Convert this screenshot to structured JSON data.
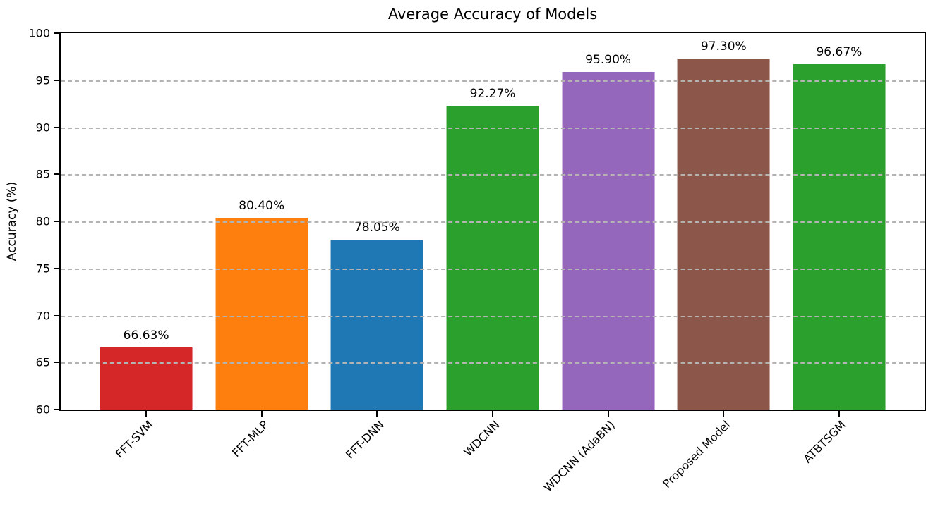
{
  "chart_data": {
    "type": "bar",
    "title": "Average Accuracy of Models",
    "xlabel": "",
    "ylabel": "Accuracy (%)",
    "categories": [
      "FFT-SVM",
      "FFT-MLP",
      "FFT-DNN",
      "WDCNN",
      "WDCNN (AdaBN)",
      "Proposed Model",
      "ATBTSGM"
    ],
    "values": [
      66.63,
      80.4,
      78.05,
      92.27,
      95.9,
      97.3,
      96.67
    ],
    "value_labels": [
      "66.63%",
      "80.40%",
      "78.05%",
      "92.27%",
      "95.90%",
      "97.30%",
      "96.67%"
    ],
    "bar_colors": [
      "#d62728",
      "#ff7f0e",
      "#1f77b4",
      "#2ca02c",
      "#9467bd",
      "#8c564b",
      "#2ca02c"
    ],
    "ylim": [
      60,
      100
    ],
    "yticks": [
      60,
      65,
      70,
      75,
      80,
      85,
      90,
      95,
      100
    ],
    "ytick_labels": [
      "60",
      "65",
      "70",
      "75",
      "80",
      "85",
      "90",
      "95",
      "100"
    ],
    "grid": {
      "axis": "y",
      "style": "dashed",
      "color": "#b3b3b3",
      "drawn_over_bars": true,
      "gridline_values": [
        65,
        70,
        75,
        80,
        85,
        90,
        95
      ]
    },
    "legend": "none",
    "colors": {
      "spine": "#000000",
      "background": "#ffffff",
      "text": "#000000"
    }
  }
}
